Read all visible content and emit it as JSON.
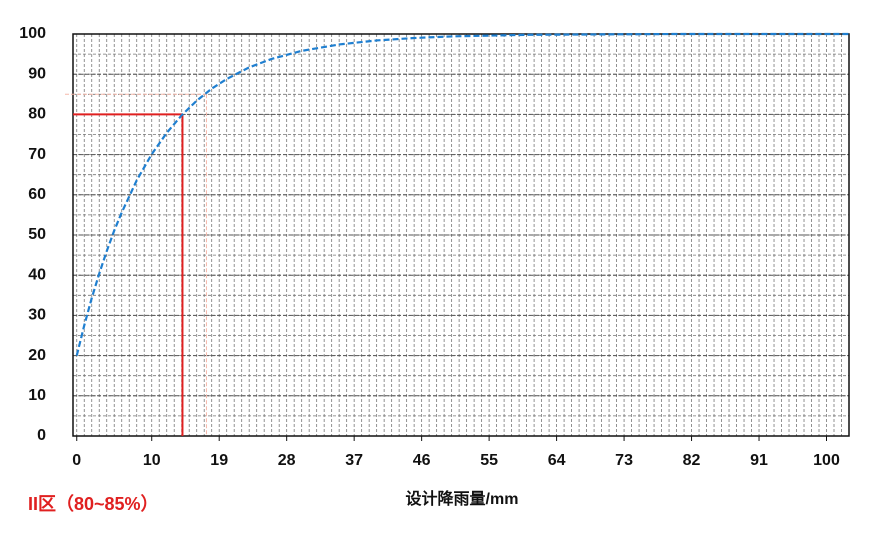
{
  "chart_data": {
    "type": "line",
    "x_label": "设计降雨量/mm",
    "annotation": "II区（80~85%）",
    "xlim": [
      -0.5,
      103
    ],
    "xticks": [
      0,
      10,
      19,
      28,
      37,
      46,
      55,
      64,
      73,
      82,
      91,
      100
    ],
    "ylim": [
      0,
      100
    ],
    "yticks": [
      0,
      10,
      20,
      30,
      40,
      50,
      60,
      70,
      80,
      90,
      100
    ],
    "grid": true,
    "series": [
      {
        "color": "#1f7fd0",
        "x": [
          0,
          1,
          2,
          3,
          4,
          5,
          6,
          8,
          10,
          12,
          14,
          16,
          18,
          20,
          23,
          26,
          30,
          35,
          40,
          45,
          50,
          60,
          70,
          80,
          103
        ],
        "values": [
          20,
          27.5,
          34.3,
          40.4,
          46.0,
          51.1,
          55.6,
          63.6,
          70.1,
          75.4,
          79.8,
          83.4,
          86.4,
          88.8,
          91.7,
          93.8,
          95.8,
          97.4,
          98.4,
          99.0,
          99.4,
          99.8,
          99.9,
          100,
          100
        ]
      }
    ],
    "markers": [
      {
        "x": 14.1,
        "y": 80,
        "color": "#e02020"
      },
      {
        "x": 17.3,
        "y": 85,
        "color": "#f6b8aa"
      }
    ]
  }
}
